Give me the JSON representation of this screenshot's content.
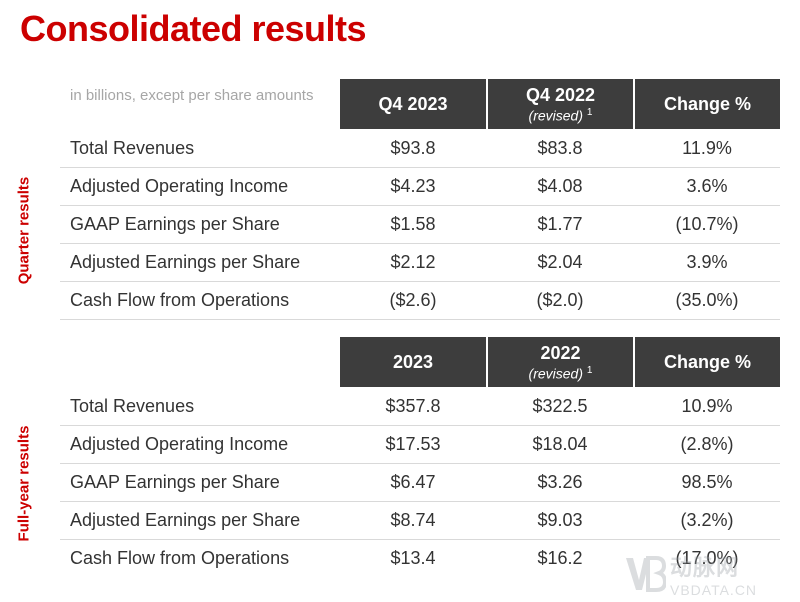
{
  "title": "Consolidated results",
  "units_note": "in billions, except per share amounts",
  "sections": [
    {
      "side_label": "Quarter results",
      "headers": [
        {
          "label": "Q4 2023",
          "sub": ""
        },
        {
          "label": "Q4 2022",
          "sub": "(revised)",
          "sup": "1"
        },
        {
          "label": "Change %",
          "sub": ""
        }
      ],
      "rows": [
        {
          "label": "Total Revenues",
          "current": "$93.8",
          "prior": "$83.8",
          "change": "11.9%"
        },
        {
          "label": "Adjusted Operating Income",
          "current": "$4.23",
          "prior": "$4.08",
          "change": "3.6%"
        },
        {
          "label": "GAAP Earnings per Share",
          "current": "$1.58",
          "prior": "$1.77",
          "change": "(10.7%)"
        },
        {
          "label": "Adjusted Earnings per Share",
          "current": "$2.12",
          "prior": "$2.04",
          "change": "3.9%"
        },
        {
          "label": "Cash Flow from Operations",
          "current": "($2.6)",
          "prior": "($2.0)",
          "change": "(35.0%)"
        }
      ]
    },
    {
      "side_label": "Full-year results",
      "headers": [
        {
          "label": "2023",
          "sub": ""
        },
        {
          "label": "2022",
          "sub": "(revised)",
          "sup": "1"
        },
        {
          "label": "Change %",
          "sub": ""
        }
      ],
      "rows": [
        {
          "label": "Total Revenues",
          "current": "$357.8",
          "prior": "$322.5",
          "change": "10.9%"
        },
        {
          "label": "Adjusted Operating Income",
          "current": "$17.53",
          "prior": "$18.04",
          "change": "(2.8%)"
        },
        {
          "label": "GAAP Earnings per Share",
          "current": "$6.47",
          "prior": "$3.26",
          "change": "98.5%"
        },
        {
          "label": "Adjusted Earnings per Share",
          "current": "$8.74",
          "prior": "$9.03",
          "change": "(3.2%)"
        },
        {
          "label": "Cash Flow from Operations",
          "current": "$13.4",
          "prior": "$16.2",
          "change": "(17.0%)"
        }
      ]
    }
  ],
  "watermark": {
    "cn": "动脉网",
    "en": "VBDATA.CN"
  },
  "colors": {
    "title": "#cc0000",
    "header_bg": "#3d3d3d",
    "side_label": "#cc0000"
  }
}
